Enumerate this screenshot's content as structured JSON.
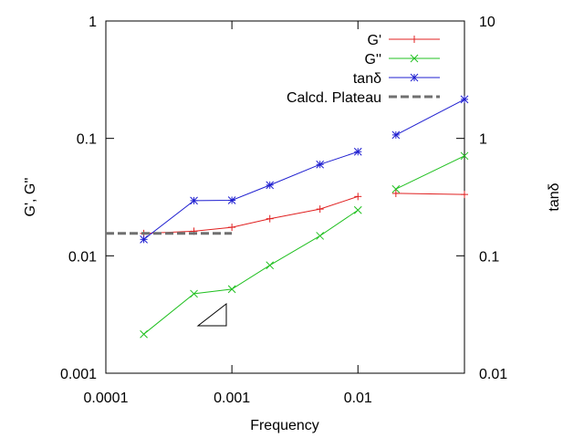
{
  "chart_data": {
    "type": "line",
    "xlabel": "Frequency",
    "ylabel": "G', G''",
    "y2label": "tanδ",
    "x_scale": "log",
    "y_scale": "log",
    "y2_scale": "log",
    "xlim": [
      0.0001,
      0.07
    ],
    "ylim": [
      0.001,
      1
    ],
    "y2lim": [
      0.01,
      10
    ],
    "x_ticks": [
      "0.0001",
      "0.001",
      "0.01"
    ],
    "y_ticks": [
      "0.001",
      "0.01",
      "0.1",
      "1"
    ],
    "y2_ticks": [
      "0.01",
      "0.1",
      "1",
      "10"
    ],
    "grid": false,
    "legend_position": "top-right",
    "series": [
      {
        "name": "G'",
        "axis": "left",
        "color": "#e02020",
        "marker": "plus",
        "segments": [
          [
            [
              0.0002,
              0.0155
            ],
            [
              0.0005,
              0.0162
            ],
            [
              0.001,
              0.0175
            ],
            [
              0.002,
              0.0207
            ],
            [
              0.005,
              0.025
            ],
            [
              0.01,
              0.032
            ]
          ],
          [
            [
              0.02,
              0.034
            ],
            [
              0.07,
              0.0333
            ]
          ]
        ]
      },
      {
        "name": "G''",
        "axis": "left",
        "color": "#20c020",
        "marker": "cross",
        "segments": [
          [
            [
              0.0002,
              0.00215
            ],
            [
              0.0005,
              0.00475
            ],
            [
              0.001,
              0.0052
            ],
            [
              0.002,
              0.0083
            ],
            [
              0.005,
              0.0148
            ],
            [
              0.01,
              0.0245
            ]
          ],
          [
            [
              0.02,
              0.037
            ],
            [
              0.07,
              0.071
            ]
          ]
        ]
      },
      {
        "name": "tanδ",
        "axis": "right",
        "color": "#1f1fd0",
        "marker": "star",
        "segments": [
          [
            [
              0.0002,
              0.138
            ],
            [
              0.0005,
              0.295
            ],
            [
              0.001,
              0.297
            ],
            [
              0.002,
              0.4
            ],
            [
              0.005,
              0.6
            ],
            [
              0.01,
              0.77
            ]
          ],
          [
            [
              0.02,
              1.07
            ],
            [
              0.07,
              2.15
            ]
          ]
        ]
      },
      {
        "name": "Calcd. Plateau",
        "axis": "left",
        "color": "#707070",
        "style": "dashed",
        "segments": [
          [
            [
              0.0001,
              0.0155
            ],
            [
              0.001,
              0.0155
            ]
          ]
        ]
      }
    ]
  }
}
